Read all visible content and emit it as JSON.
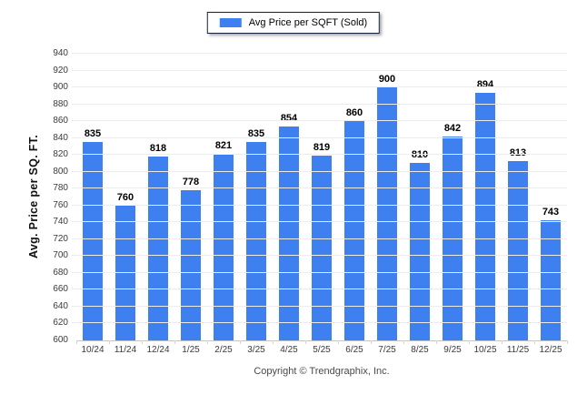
{
  "legend": {
    "label": "Avg Price per SQFT (Sold)",
    "swatch_color": "#3e80f0"
  },
  "footer": {
    "copyright": "Copyright © Trendgraphix, Inc."
  },
  "colors": {
    "bar": "#3e80f0",
    "gridline": "#ececec",
    "axis_line": "#c6c6c6",
    "tick_text": "#3a3a3a",
    "legend_border": "#13233f"
  },
  "chart_data": {
    "type": "bar",
    "title": "",
    "xlabel": "",
    "ylabel": "Avg. Price per SQ. FT.",
    "ylim": [
      600,
      940
    ],
    "ytick_step": 20,
    "grid": true,
    "legend_position": "top-center",
    "categories": [
      "10/24",
      "11/24",
      "12/24",
      "1/25",
      "2/25",
      "3/25",
      "4/25",
      "5/25",
      "6/25",
      "7/25",
      "8/25",
      "9/25",
      "10/25",
      "11/25",
      "12/25"
    ],
    "series": [
      {
        "name": "Avg Price per SQFT (Sold)",
        "color": "#3e80f0",
        "values": [
          835,
          760,
          818,
          778,
          821,
          835,
          854,
          819,
          860,
          900,
          810,
          842,
          894,
          813,
          743
        ]
      }
    ]
  }
}
